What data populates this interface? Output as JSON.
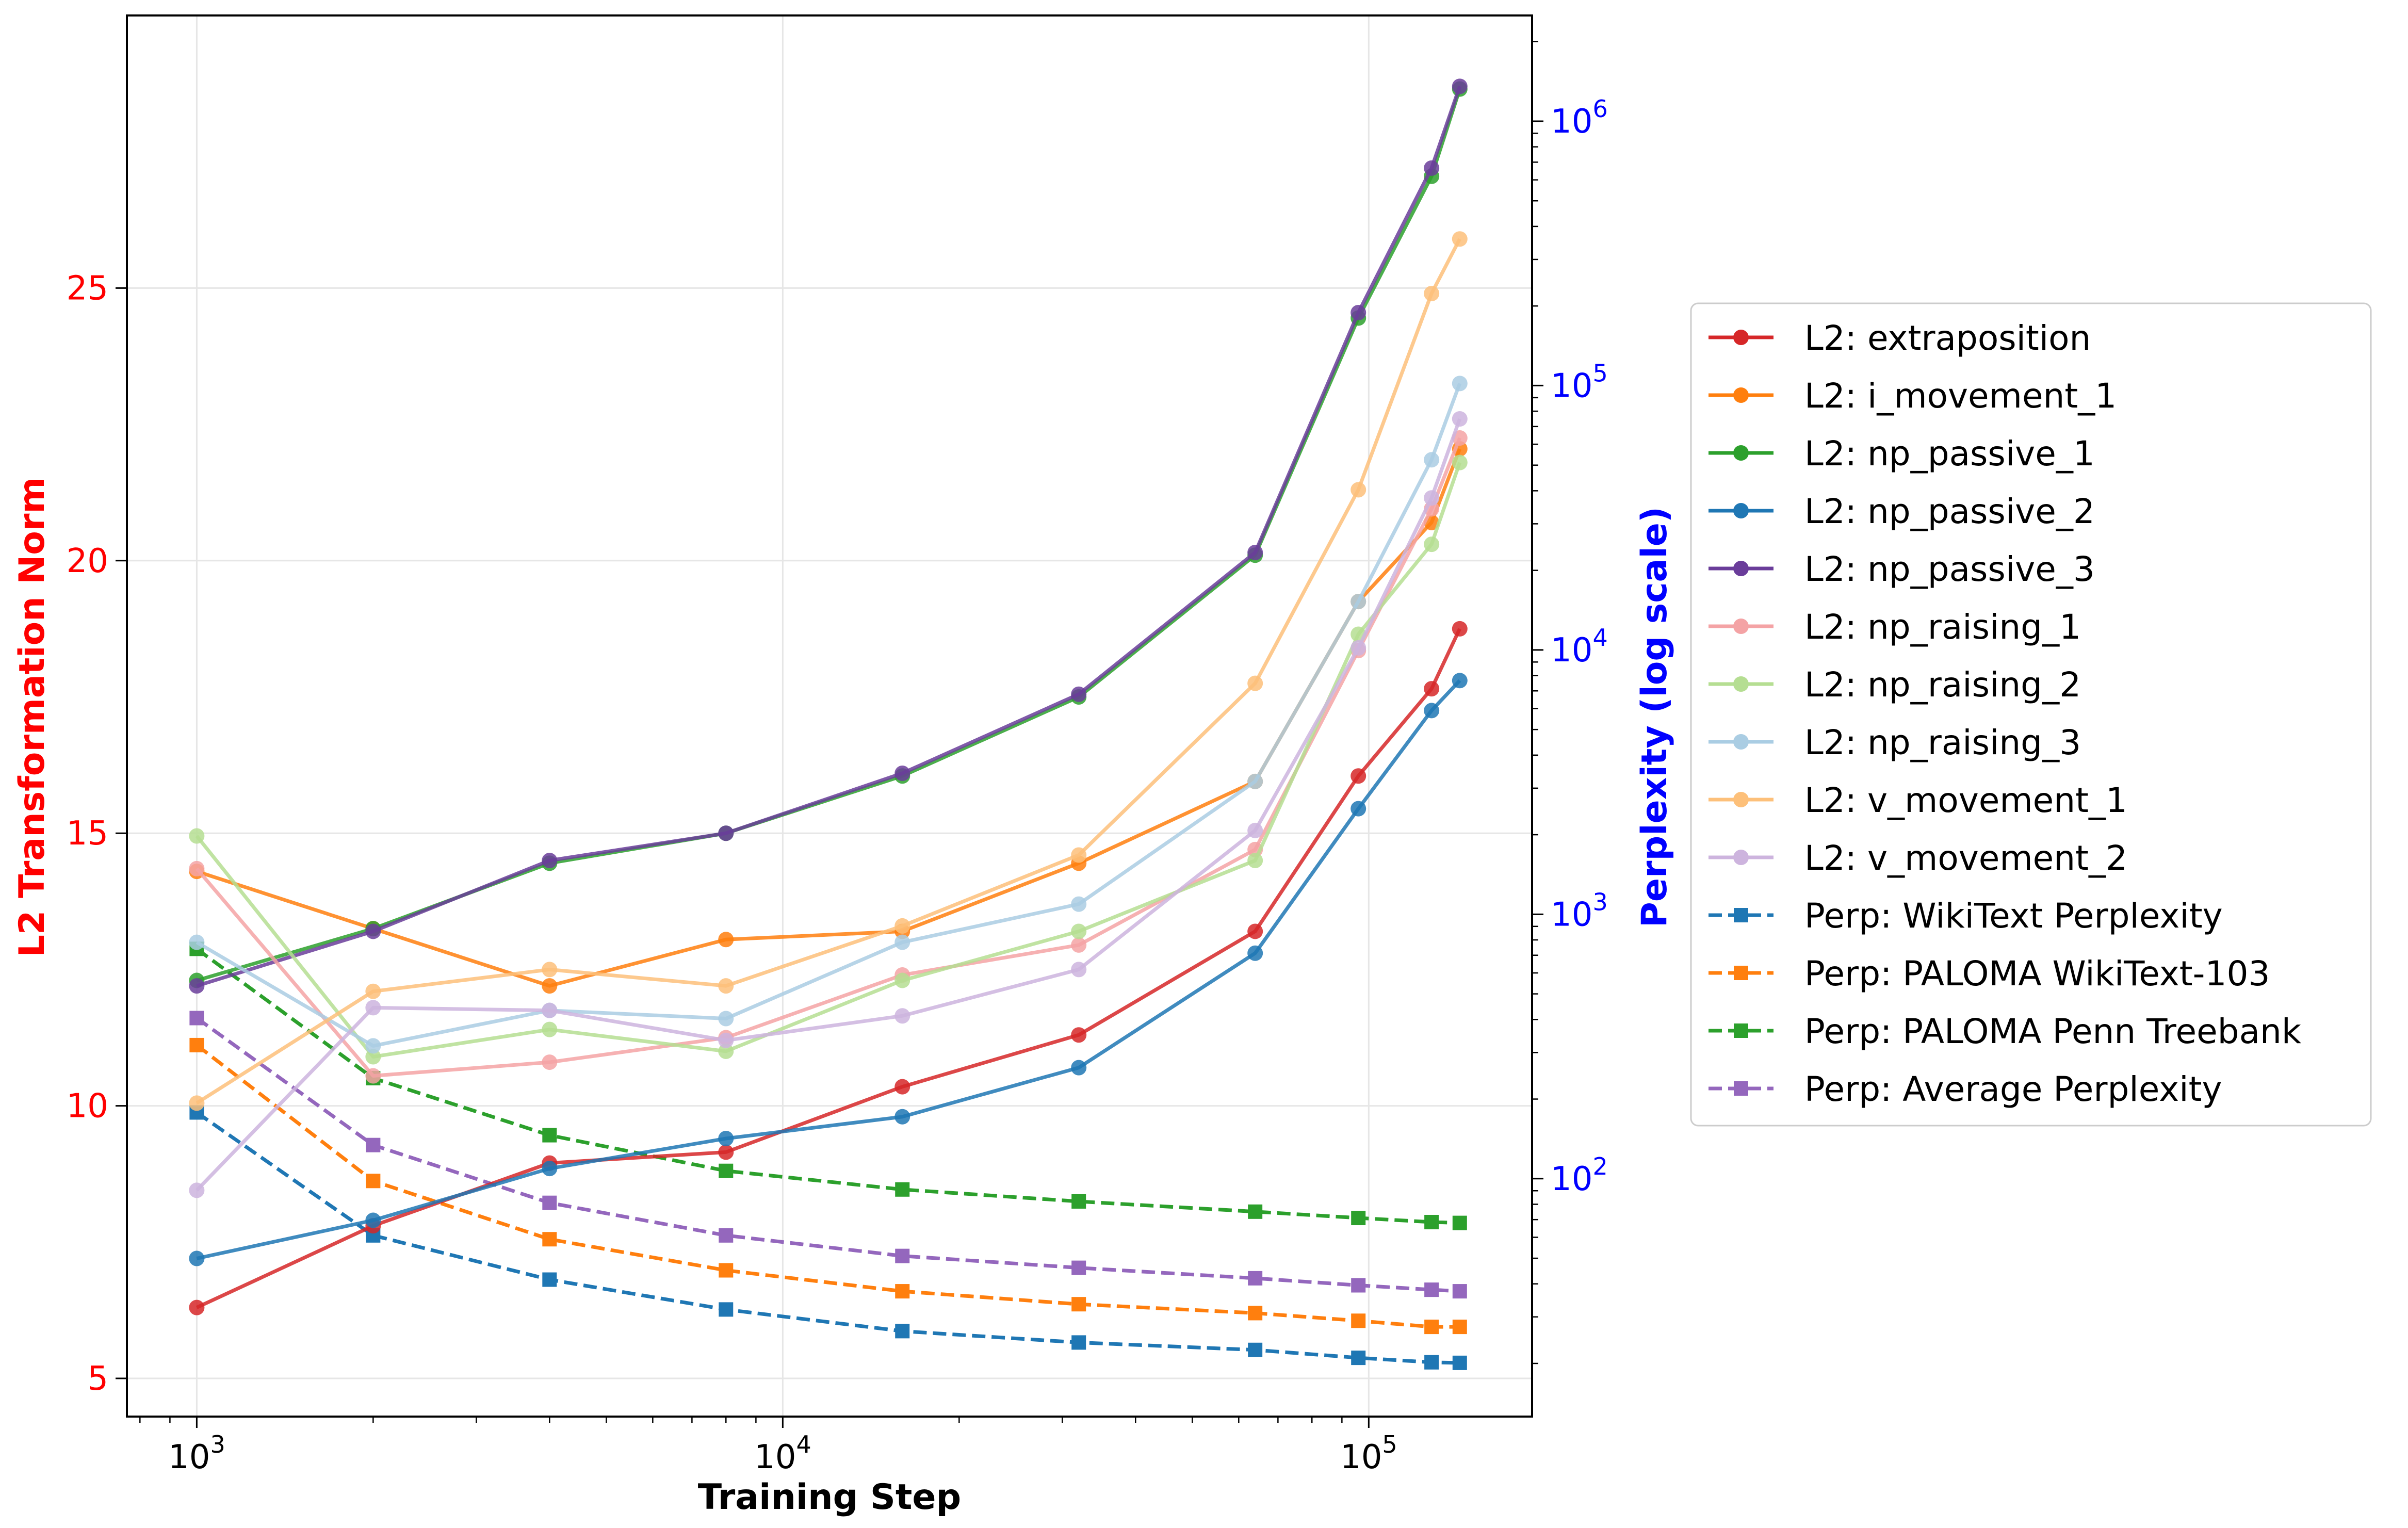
{
  "chart_data": {
    "type": "line",
    "xlabel": "Training Step",
    "ylabel_left": "L2 Transformation Norm",
    "ylabel_right": "Perplexity (log scale)",
    "xscale": "log",
    "xlim": [
      760,
      190000
    ],
    "ylim_left": [
      4.3,
      30.0
    ],
    "ylim_right_log10": [
      1.1,
      6.4
    ],
    "x_ticks": [
      {
        "exp": "3",
        "value": 1000
      },
      {
        "exp": "4",
        "value": 10000
      },
      {
        "exp": "5",
        "value": 100000
      }
    ],
    "y_left_ticks": [
      5,
      10,
      15,
      20,
      25
    ],
    "y_right_ticks": [
      {
        "exp": "2",
        "value": 2
      },
      {
        "exp": "3",
        "value": 3
      },
      {
        "exp": "4",
        "value": 4
      },
      {
        "exp": "5",
        "value": 5
      },
      {
        "exp": "6",
        "value": 6
      }
    ],
    "tick_base": "10",
    "grid": true,
    "legend_position": "right, outside plot",
    "x": [
      1000,
      2000,
      4000,
      8000,
      16000,
      32000,
      64000,
      96000,
      128000,
      143000
    ],
    "series": [
      {
        "name": "L2: extraposition",
        "axis": "left",
        "color": "#d62728",
        "values": [
          6.3,
          7.8,
          8.95,
          9.15,
          10.35,
          11.3,
          13.2,
          16.05,
          17.65,
          18.75
        ]
      },
      {
        "name": "L2: i_movement_1",
        "axis": "left",
        "color": "#ff7f0e",
        "values": [
          14.3,
          13.25,
          12.2,
          13.05,
          13.2,
          14.45,
          15.95,
          19.25,
          20.7,
          22.05
        ]
      },
      {
        "name": "L2: np_passive_1",
        "axis": "left",
        "color": "#2ca02c",
        "values": [
          12.3,
          13.25,
          14.45,
          15.0,
          16.05,
          17.5,
          20.1,
          24.45,
          27.05,
          28.65
        ]
      },
      {
        "name": "L2: np_passive_2",
        "axis": "left",
        "color": "#1f77b4",
        "values": [
          7.2,
          7.9,
          8.85,
          9.4,
          9.8,
          10.7,
          12.8,
          15.45,
          17.25,
          17.8
        ]
      },
      {
        "name": "L2: np_passive_3",
        "axis": "left",
        "color": "#6a3d9a",
        "values": [
          12.2,
          13.2,
          14.5,
          15.0,
          16.1,
          17.55,
          20.15,
          24.55,
          27.2,
          28.7
        ]
      },
      {
        "name": "L2: np_raising_1",
        "axis": "left",
        "color": "#f4a3a5",
        "values": [
          14.35,
          10.55,
          10.8,
          11.25,
          12.4,
          12.95,
          14.7,
          18.35,
          20.95,
          22.25
        ]
      },
      {
        "name": "L2: np_raising_2",
        "axis": "left",
        "color": "#b5de92",
        "values": [
          14.95,
          10.9,
          11.4,
          11.0,
          12.3,
          13.2,
          14.5,
          18.65,
          20.3,
          21.8
        ]
      },
      {
        "name": "L2: np_raising_3",
        "axis": "left",
        "color": "#aacde3",
        "values": [
          13.0,
          11.1,
          11.75,
          11.6,
          13.0,
          13.7,
          15.95,
          19.25,
          21.85,
          23.25
        ]
      },
      {
        "name": "L2: v_movement_1",
        "axis": "left",
        "color": "#fdc07a",
        "values": [
          10.05,
          12.1,
          12.5,
          12.2,
          13.3,
          14.6,
          17.75,
          21.3,
          24.9,
          25.9
        ]
      },
      {
        "name": "L2: v_movement_2",
        "axis": "left",
        "color": "#cdb4de",
        "values": [
          8.45,
          11.8,
          11.75,
          11.2,
          11.65,
          12.5,
          15.05,
          18.4,
          21.15,
          22.6
        ]
      },
      {
        "name": "Perp: WikiText Perplexity",
        "axis": "right",
        "color": "#1f77b4",
        "dashed": true,
        "values": [
          178,
          61,
          41.5,
          32,
          26.5,
          24,
          22.5,
          21,
          20.2,
          20.1
        ]
      },
      {
        "name": "Perp: PALOMA WikiText-103",
        "axis": "right",
        "color": "#ff7f0e",
        "dashed": true,
        "values": [
          320,
          98,
          59,
          45,
          37.5,
          33.5,
          31,
          29,
          27.5,
          27.5
        ]
      },
      {
        "name": "Perp: PALOMA Penn Treebank",
        "axis": "right",
        "color": "#2ca02c",
        "dashed": true,
        "values": [
          740,
          240,
          146,
          107,
          91,
          82,
          75,
          71,
          68.5,
          68
        ]
      },
      {
        "name": "Perp: Average Perplexity",
        "axis": "right",
        "color": "#9467bd",
        "dashed": true,
        "values": [
          405,
          134,
          81,
          61,
          51,
          46,
          42,
          39.5,
          38,
          37.5
        ]
      }
    ]
  }
}
